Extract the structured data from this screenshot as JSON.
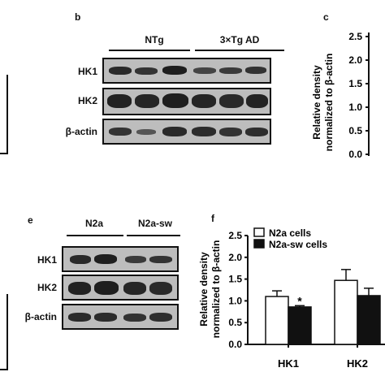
{
  "panel_b": {
    "letter": "b",
    "groups": [
      "NTg",
      "3×Tg AD"
    ],
    "rows": [
      "HK1",
      "HK2",
      "β-actin"
    ]
  },
  "panel_c": {
    "letter": "c",
    "ylabel_line1": "Relative density",
    "ylabel_line2": "normalized to β-actin",
    "ticks": [
      "2.5",
      "2.0",
      "1.5",
      "1.0",
      "0.5",
      "0.0"
    ]
  },
  "panel_e": {
    "letter": "e",
    "groups": [
      "N2a",
      "N2a-sw"
    ],
    "rows": [
      "HK1",
      "HK2",
      "β-actin"
    ]
  },
  "panel_f": {
    "letter": "f",
    "legend": [
      "N2a cells",
      "N2a-sw cells"
    ],
    "significance": "*"
  },
  "chart_data": {
    "type": "bar",
    "categories": [
      "HK1",
      "HK2"
    ],
    "series": [
      {
        "name": "N2a cells",
        "values": [
          1.1,
          1.47
        ],
        "errors": [
          0.13,
          0.25
        ],
        "color": "#ffffff"
      },
      {
        "name": "N2a-sw cells",
        "values": [
          0.86,
          1.12
        ],
        "errors": [
          0.03,
          0.17
        ],
        "color": "#111111"
      }
    ],
    "title": "",
    "xlabel": "",
    "ylabel": "Relative density normalized to β-actin",
    "ylim": [
      0,
      2.5
    ],
    "yticks": [
      "0.0",
      "0.5",
      "1.0",
      "1.5",
      "2.0",
      "2.5"
    ],
    "grid": false,
    "legend_position": "top-left"
  }
}
